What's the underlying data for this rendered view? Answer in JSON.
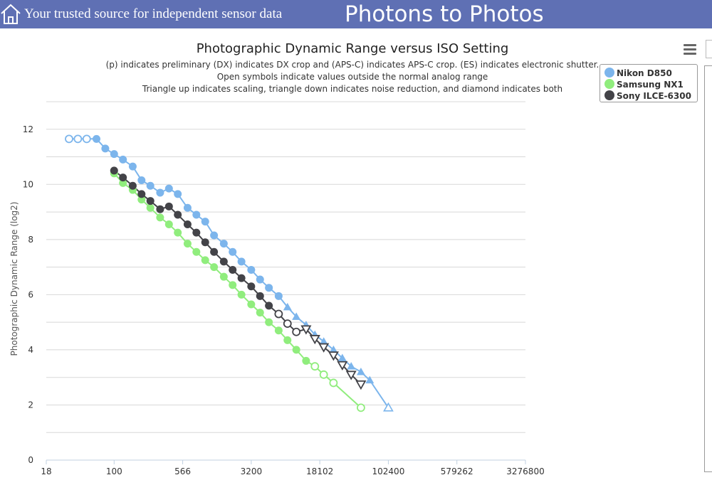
{
  "header": {
    "tagline": "Your trusted source for independent sensor data",
    "site_title": "Photons to Photos",
    "home_icon": "home-icon",
    "background": "#5f70b4"
  },
  "menu_icon": "hamburger-menu-icon",
  "chart_data": {
    "type": "line",
    "title": "Photographic Dynamic Range versus ISO Setting",
    "subtitle_lines": [
      "(p) indicates preliminary (DX) indicates DX crop and (APS-C) indicates APS-C crop. (ES) indicates electronic shutter.",
      "Open symbols indicate values outside the normal analog range",
      "Triangle up indicates scaling, triangle down indicates noise reduction, and diamond indicates both"
    ],
    "ylabel": "Photographic Dynamic Range (log2)",
    "xlabel": "",
    "x_scale": "log",
    "xlim": [
      18,
      3276800
    ],
    "ylim": [
      0,
      13
    ],
    "x_ticks": [
      18,
      100,
      566,
      3200,
      18102,
      102400,
      579262,
      3276800
    ],
    "x_tick_labels": [
      "18",
      "100",
      "566",
      "3200",
      "18102",
      "102400",
      "579262",
      "3276800"
    ],
    "y_ticks": [
      0,
      2,
      4,
      6,
      8,
      10,
      12
    ],
    "grid": "horizontal",
    "legend_position": "top-right",
    "series": [
      {
        "name": "Nikon D850",
        "color": "#7cb5ec",
        "points": [
          {
            "x": 32,
            "y": 11.65,
            "m": "open"
          },
          {
            "x": 40,
            "y": 11.65,
            "m": "open"
          },
          {
            "x": 50,
            "y": 11.65,
            "m": "open"
          },
          {
            "x": 64,
            "y": 11.65,
            "m": "filled"
          },
          {
            "x": 80,
            "y": 11.3,
            "m": "filled"
          },
          {
            "x": 100,
            "y": 11.1,
            "m": "filled"
          },
          {
            "x": 125,
            "y": 10.9,
            "m": "filled"
          },
          {
            "x": 160,
            "y": 10.65,
            "m": "filled"
          },
          {
            "x": 200,
            "y": 10.15,
            "m": "filled"
          },
          {
            "x": 250,
            "y": 9.95,
            "m": "filled"
          },
          {
            "x": 320,
            "y": 9.7,
            "m": "filled"
          },
          {
            "x": 400,
            "y": 9.85,
            "m": "filled"
          },
          {
            "x": 500,
            "y": 9.65,
            "m": "filled"
          },
          {
            "x": 640,
            "y": 9.15,
            "m": "filled"
          },
          {
            "x": 800,
            "y": 8.9,
            "m": "filled"
          },
          {
            "x": 1000,
            "y": 8.65,
            "m": "filled"
          },
          {
            "x": 1250,
            "y": 8.15,
            "m": "filled"
          },
          {
            "x": 1600,
            "y": 7.85,
            "m": "filled"
          },
          {
            "x": 2000,
            "y": 7.55,
            "m": "filled"
          },
          {
            "x": 2500,
            "y": 7.2,
            "m": "filled"
          },
          {
            "x": 3200,
            "y": 6.9,
            "m": "filled"
          },
          {
            "x": 4000,
            "y": 6.55,
            "m": "filled"
          },
          {
            "x": 5000,
            "y": 6.25,
            "m": "filled"
          },
          {
            "x": 6400,
            "y": 5.95,
            "m": "filled"
          },
          {
            "x": 8000,
            "y": 5.55,
            "m": "tri-up"
          },
          {
            "x": 10000,
            "y": 5.2,
            "m": "tri-up"
          },
          {
            "x": 12800,
            "y": 4.9,
            "m": "tri-up"
          },
          {
            "x": 16000,
            "y": 4.55,
            "m": "tri-up"
          },
          {
            "x": 20000,
            "y": 4.3,
            "m": "tri-up"
          },
          {
            "x": 25600,
            "y": 4.0,
            "m": "tri-up"
          },
          {
            "x": 32000,
            "y": 3.7,
            "m": "tri-up"
          },
          {
            "x": 40000,
            "y": 3.4,
            "m": "tri-up"
          },
          {
            "x": 51200,
            "y": 3.2,
            "m": "tri-up"
          },
          {
            "x": 64000,
            "y": 2.9,
            "m": "tri-up"
          },
          {
            "x": 102400,
            "y": 1.9,
            "m": "tri-up-open"
          }
        ]
      },
      {
        "name": "Samsung NX1",
        "color": "#90ed7d",
        "points": [
          {
            "x": 100,
            "y": 10.4,
            "m": "filled"
          },
          {
            "x": 125,
            "y": 10.05,
            "m": "filled"
          },
          {
            "x": 160,
            "y": 9.8,
            "m": "filled"
          },
          {
            "x": 200,
            "y": 9.45,
            "m": "filled"
          },
          {
            "x": 250,
            "y": 9.15,
            "m": "filled"
          },
          {
            "x": 320,
            "y": 8.8,
            "m": "filled"
          },
          {
            "x": 400,
            "y": 8.55,
            "m": "filled"
          },
          {
            "x": 500,
            "y": 8.25,
            "m": "filled"
          },
          {
            "x": 640,
            "y": 7.85,
            "m": "filled"
          },
          {
            "x": 800,
            "y": 7.55,
            "m": "filled"
          },
          {
            "x": 1000,
            "y": 7.25,
            "m": "filled"
          },
          {
            "x": 1250,
            "y": 7.0,
            "m": "filled"
          },
          {
            "x": 1600,
            "y": 6.65,
            "m": "filled"
          },
          {
            "x": 2000,
            "y": 6.35,
            "m": "filled"
          },
          {
            "x": 2500,
            "y": 6.0,
            "m": "filled"
          },
          {
            "x": 3200,
            "y": 5.65,
            "m": "filled"
          },
          {
            "x": 4000,
            "y": 5.35,
            "m": "filled"
          },
          {
            "x": 5000,
            "y": 5.0,
            "m": "filled"
          },
          {
            "x": 6400,
            "y": 4.7,
            "m": "filled"
          },
          {
            "x": 8000,
            "y": 4.35,
            "m": "filled"
          },
          {
            "x": 10000,
            "y": 4.0,
            "m": "filled"
          },
          {
            "x": 12800,
            "y": 3.6,
            "m": "filled"
          },
          {
            "x": 16000,
            "y": 3.4,
            "m": "open"
          },
          {
            "x": 20000,
            "y": 3.1,
            "m": "open"
          },
          {
            "x": 25600,
            "y": 2.8,
            "m": "open"
          },
          {
            "x": 51200,
            "y": 1.9,
            "m": "open"
          }
        ]
      },
      {
        "name": "Sony ILCE-6300",
        "color": "#434348",
        "points": [
          {
            "x": 100,
            "y": 10.5,
            "m": "filled"
          },
          {
            "x": 125,
            "y": 10.25,
            "m": "filled"
          },
          {
            "x": 160,
            "y": 9.95,
            "m": "filled"
          },
          {
            "x": 200,
            "y": 9.65,
            "m": "filled"
          },
          {
            "x": 250,
            "y": 9.4,
            "m": "filled"
          },
          {
            "x": 320,
            "y": 9.1,
            "m": "filled"
          },
          {
            "x": 400,
            "y": 9.2,
            "m": "filled"
          },
          {
            "x": 500,
            "y": 8.9,
            "m": "filled"
          },
          {
            "x": 640,
            "y": 8.55,
            "m": "filled"
          },
          {
            "x": 800,
            "y": 8.25,
            "m": "filled"
          },
          {
            "x": 1000,
            "y": 7.9,
            "m": "filled"
          },
          {
            "x": 1250,
            "y": 7.55,
            "m": "filled"
          },
          {
            "x": 1600,
            "y": 7.2,
            "m": "filled"
          },
          {
            "x": 2000,
            "y": 6.9,
            "m": "filled"
          },
          {
            "x": 2500,
            "y": 6.6,
            "m": "filled"
          },
          {
            "x": 3200,
            "y": 6.3,
            "m": "filled"
          },
          {
            "x": 4000,
            "y": 5.95,
            "m": "filled"
          },
          {
            "x": 5000,
            "y": 5.6,
            "m": "filled"
          },
          {
            "x": 6400,
            "y": 5.3,
            "m": "open"
          },
          {
            "x": 8000,
            "y": 4.95,
            "m": "open"
          },
          {
            "x": 10000,
            "y": 4.65,
            "m": "open"
          },
          {
            "x": 12800,
            "y": 4.75,
            "m": "tri-down"
          },
          {
            "x": 16000,
            "y": 4.4,
            "m": "tri-down"
          },
          {
            "x": 20000,
            "y": 4.1,
            "m": "tri-down"
          },
          {
            "x": 25600,
            "y": 3.8,
            "m": "tri-down"
          },
          {
            "x": 32000,
            "y": 3.45,
            "m": "tri-down"
          },
          {
            "x": 40000,
            "y": 3.1,
            "m": "tri-down"
          },
          {
            "x": 51200,
            "y": 2.75,
            "m": "tri-down"
          }
        ]
      }
    ]
  }
}
